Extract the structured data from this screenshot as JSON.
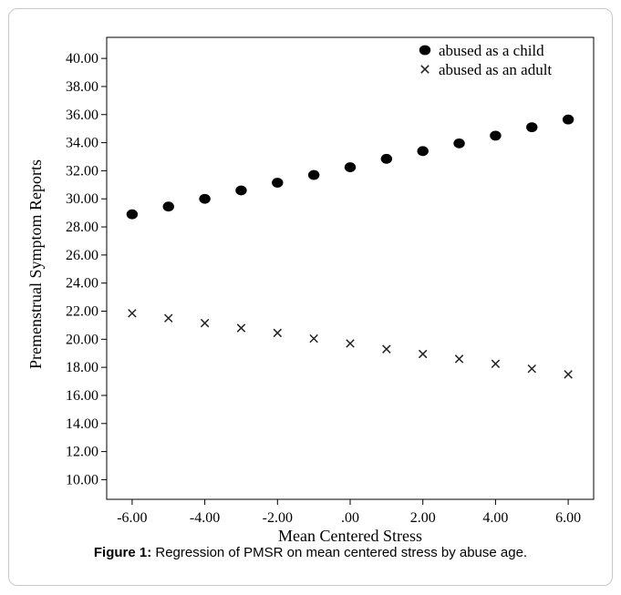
{
  "caption": {
    "label": "Figure 1:",
    "text": " Regression of PMSR on mean centered stress by abuse age."
  },
  "chart_data": {
    "type": "scatter",
    "xlabel": "Mean Centered Stress",
    "ylabel": "Premenstrual Symptom Reports",
    "xlim": [
      -6.7,
      6.7
    ],
    "ylim": [
      8.6,
      41.5
    ],
    "x_ticks": [
      -6,
      -4,
      -2,
      0,
      2,
      4,
      6
    ],
    "x_tick_labels": [
      "-6.00",
      "-4.00",
      "-2.00",
      ".00",
      "2.00",
      "4.00",
      "6.00"
    ],
    "y_ticks": [
      10,
      12,
      14,
      16,
      18,
      20,
      22,
      24,
      26,
      28,
      30,
      32,
      34,
      36,
      38,
      40
    ],
    "y_tick_labels": [
      "10.00",
      "12.00",
      "14.00",
      "16.00",
      "18.00",
      "20.00",
      "22.00",
      "24.00",
      "26.00",
      "28.00",
      "30.00",
      "32.00",
      "34.00",
      "36.00",
      "38.00",
      "40.00"
    ],
    "legend_position": "top-right",
    "grid": false,
    "series": [
      {
        "name": "abused as a child",
        "marker": "circle",
        "color": "#000000",
        "x": [
          -6,
          -5,
          -4,
          -3,
          -2,
          -1,
          0,
          1,
          2,
          3,
          4,
          5,
          6
        ],
        "y": [
          28.9,
          29.45,
          30.0,
          30.6,
          31.15,
          31.7,
          32.25,
          32.85,
          33.4,
          33.95,
          34.5,
          35.1,
          35.65
        ]
      },
      {
        "name": "abused as an adult",
        "marker": "x",
        "color": "#000000",
        "x": [
          -6,
          -5,
          -4,
          -3,
          -2,
          -1,
          0,
          1,
          2,
          3,
          4,
          5,
          6
        ],
        "y": [
          21.85,
          21.5,
          21.15,
          20.8,
          20.45,
          20.05,
          19.7,
          19.3,
          18.95,
          18.6,
          18.25,
          17.9,
          17.5
        ]
      }
    ]
  }
}
